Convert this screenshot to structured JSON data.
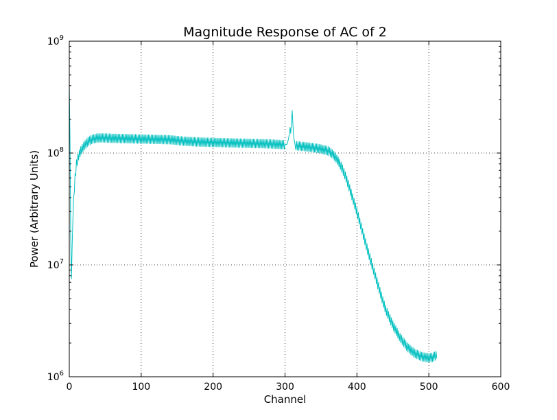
{
  "chart_data": {
    "type": "line",
    "title": "Magnitude Response of AC of 2",
    "xlabel": "Channel",
    "ylabel": "Power (Arbitrary Units)",
    "xlim": [
      0,
      600
    ],
    "ylim": [
      1000000,
      1000000000
    ],
    "yscale": "log",
    "grid": true,
    "x_ticks": [
      {
        "value": 0,
        "label": "0"
      },
      {
        "value": 100,
        "label": "100"
      },
      {
        "value": 200,
        "label": "200"
      },
      {
        "value": 300,
        "label": "300"
      },
      {
        "value": 400,
        "label": "400"
      },
      {
        "value": 500,
        "label": "500"
      },
      {
        "value": 600,
        "label": "600"
      }
    ],
    "y_ticks": [
      {
        "value": 1000000,
        "base": "10",
        "exp": "6"
      },
      {
        "value": 10000000,
        "base": "10",
        "exp": "7"
      },
      {
        "value": 100000000,
        "base": "10",
        "exp": "8"
      },
      {
        "value": 1000000000,
        "base": "10",
        "exp": "9"
      }
    ],
    "series": [
      {
        "color": "#00bfbf",
        "ripple": true,
        "x": [
          0,
          1,
          2,
          3,
          4,
          5,
          6,
          8,
          10,
          13,
          16,
          20,
          25,
          30,
          35,
          40,
          50,
          60,
          80,
          100,
          120,
          140,
          160,
          180,
          200,
          220,
          240,
          260,
          280,
          300,
          303,
          305,
          306,
          307,
          308,
          309,
          310,
          311,
          312,
          314,
          318,
          330,
          340,
          350,
          360,
          365,
          370,
          375,
          380,
          385,
          390,
          395,
          400,
          405,
          410,
          415,
          420,
          425,
          430,
          435,
          440,
          450,
          460,
          470,
          480,
          490,
          500,
          505,
          510,
          511
        ],
        "y": [
          400000000,
          130000000,
          18000000,
          7500000,
          15000000,
          25000000,
          40000000,
          60000000,
          80000000,
          95000000,
          105000000,
          115000000,
          125000000,
          132000000,
          135000000,
          137000000,
          137000000,
          136000000,
          135000000,
          134000000,
          133000000,
          132000000,
          128000000,
          126000000,
          125000000,
          124000000,
          123000000,
          122000000,
          121000000,
          119000000,
          120000000,
          135000000,
          150000000,
          170000000,
          150000000,
          190000000,
          240000000,
          180000000,
          140000000,
          118000000,
          116000000,
          114000000,
          112000000,
          109000000,
          105000000,
          100000000,
          92000000,
          83000000,
          72000000,
          60000000,
          48000000,
          38000000,
          30000000,
          23000000,
          17500000,
          13500000,
          10500000,
          8200000,
          6400000,
          5000000,
          4000000,
          2900000,
          2250000,
          1850000,
          1630000,
          1520000,
          1480000,
          1500000,
          1550000,
          1600000
        ]
      }
    ]
  }
}
